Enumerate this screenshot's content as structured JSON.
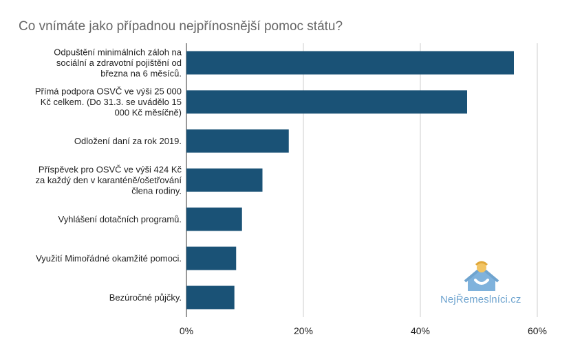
{
  "title": "Co vnímáte jako případnou nejpřínosnější pomoc státu?",
  "watermark": "NejŘemeslníci.cz",
  "colors": {
    "bar": "#1a5276",
    "grid": "#cccccc",
    "axis": "#333333",
    "watermark": "#6fa4cf"
  },
  "chart_data": {
    "type": "bar",
    "orientation": "horizontal",
    "title": "Co vnímáte jako případnou nejpřínosnější pomoc státu?",
    "categories": [
      "Odpuštění minimálních záloh na sociální a zdravotní pojištění od března na 6 měsíců.",
      "Přímá podpora OSVČ ve výši 25 000 Kč celkem. (Do 31.3. se uvádělo 15 000 Kč měsíčně)",
      "Odložení daní za rok 2019.",
      "Příspěvek pro OSVČ ve výši 424 Kč za každý den v karanténě/ošetřování člena rodiny.",
      "Vyhlášení dotačních programů.",
      "Využití Mimořádné okamžité pomoci.",
      "Bezúročné půjčky."
    ],
    "category_lines": [
      [
        "Odpuštění minimálních záloh na",
        "sociální a zdravotní pojištění od",
        "března na 6 měsíců."
      ],
      [
        "Přímá podpora OSVČ ve výši 25 000",
        "Kč celkem. (Do 31.3. se uvádělo 15",
        "000 Kč měsíčně)"
      ],
      [
        "Odložení daní za rok 2019."
      ],
      [
        "Příspěvek pro OSVČ ve výši 424 Kč",
        "za každý den v karanténě/ošetřování",
        "člena rodiny."
      ],
      [
        "Vyhlášení dotačních programů."
      ],
      [
        "Využití Mimořádné okamžité pomoci."
      ],
      [
        "Bezúročné půjčky."
      ]
    ],
    "values": [
      56,
      48,
      17.5,
      13,
      9.5,
      8.5,
      8.2
    ],
    "xlim": [
      0,
      60
    ],
    "ticks": [
      0,
      20,
      40,
      60
    ],
    "tick_labels": [
      "0%",
      "20%",
      "40%",
      "60%"
    ],
    "grid": true,
    "legend": "none"
  }
}
